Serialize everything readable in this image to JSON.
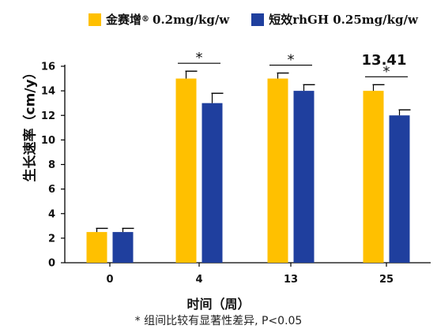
{
  "chart_data": {
    "type": "bar",
    "categories": [
      "0",
      "4",
      "13",
      "25"
    ],
    "series": [
      {
        "name": "金赛增® 0.2mg/kg/w",
        "color": "#FFC000",
        "values": [
          2.5,
          15.0,
          15.0,
          14.0
        ],
        "errors": [
          0.3,
          0.6,
          0.45,
          0.5
        ]
      },
      {
        "name": "短效rhGH 0.25mg/kg/w",
        "color": "#1F3F9E",
        "values": [
          2.5,
          13.0,
          14.0,
          12.0
        ],
        "errors": [
          0.3,
          0.8,
          0.5,
          0.45
        ]
      }
    ],
    "xlabel": "时间（周）",
    "ylabel": "生长速率（cm/y）",
    "ylim": [
      0,
      16
    ],
    "yticks": [
      0,
      2,
      4,
      6,
      8,
      10,
      12,
      14,
      16
    ],
    "significance": [
      {
        "category": "4",
        "label": "*"
      },
      {
        "category": "13",
        "label": "*"
      },
      {
        "category": "25",
        "label": "*"
      }
    ],
    "annotations": [
      {
        "category": "25",
        "text": "13.41"
      }
    ],
    "footnote": "* 组间比较有显著性差异, P<0.05",
    "legend": "top"
  },
  "legend": {
    "series1_label": "金赛增",
    "series1_mark": "®",
    "series1_dose": "0.2mg/kg/w",
    "series2_label": "短效rhGH  0.25mg/kg/w"
  }
}
